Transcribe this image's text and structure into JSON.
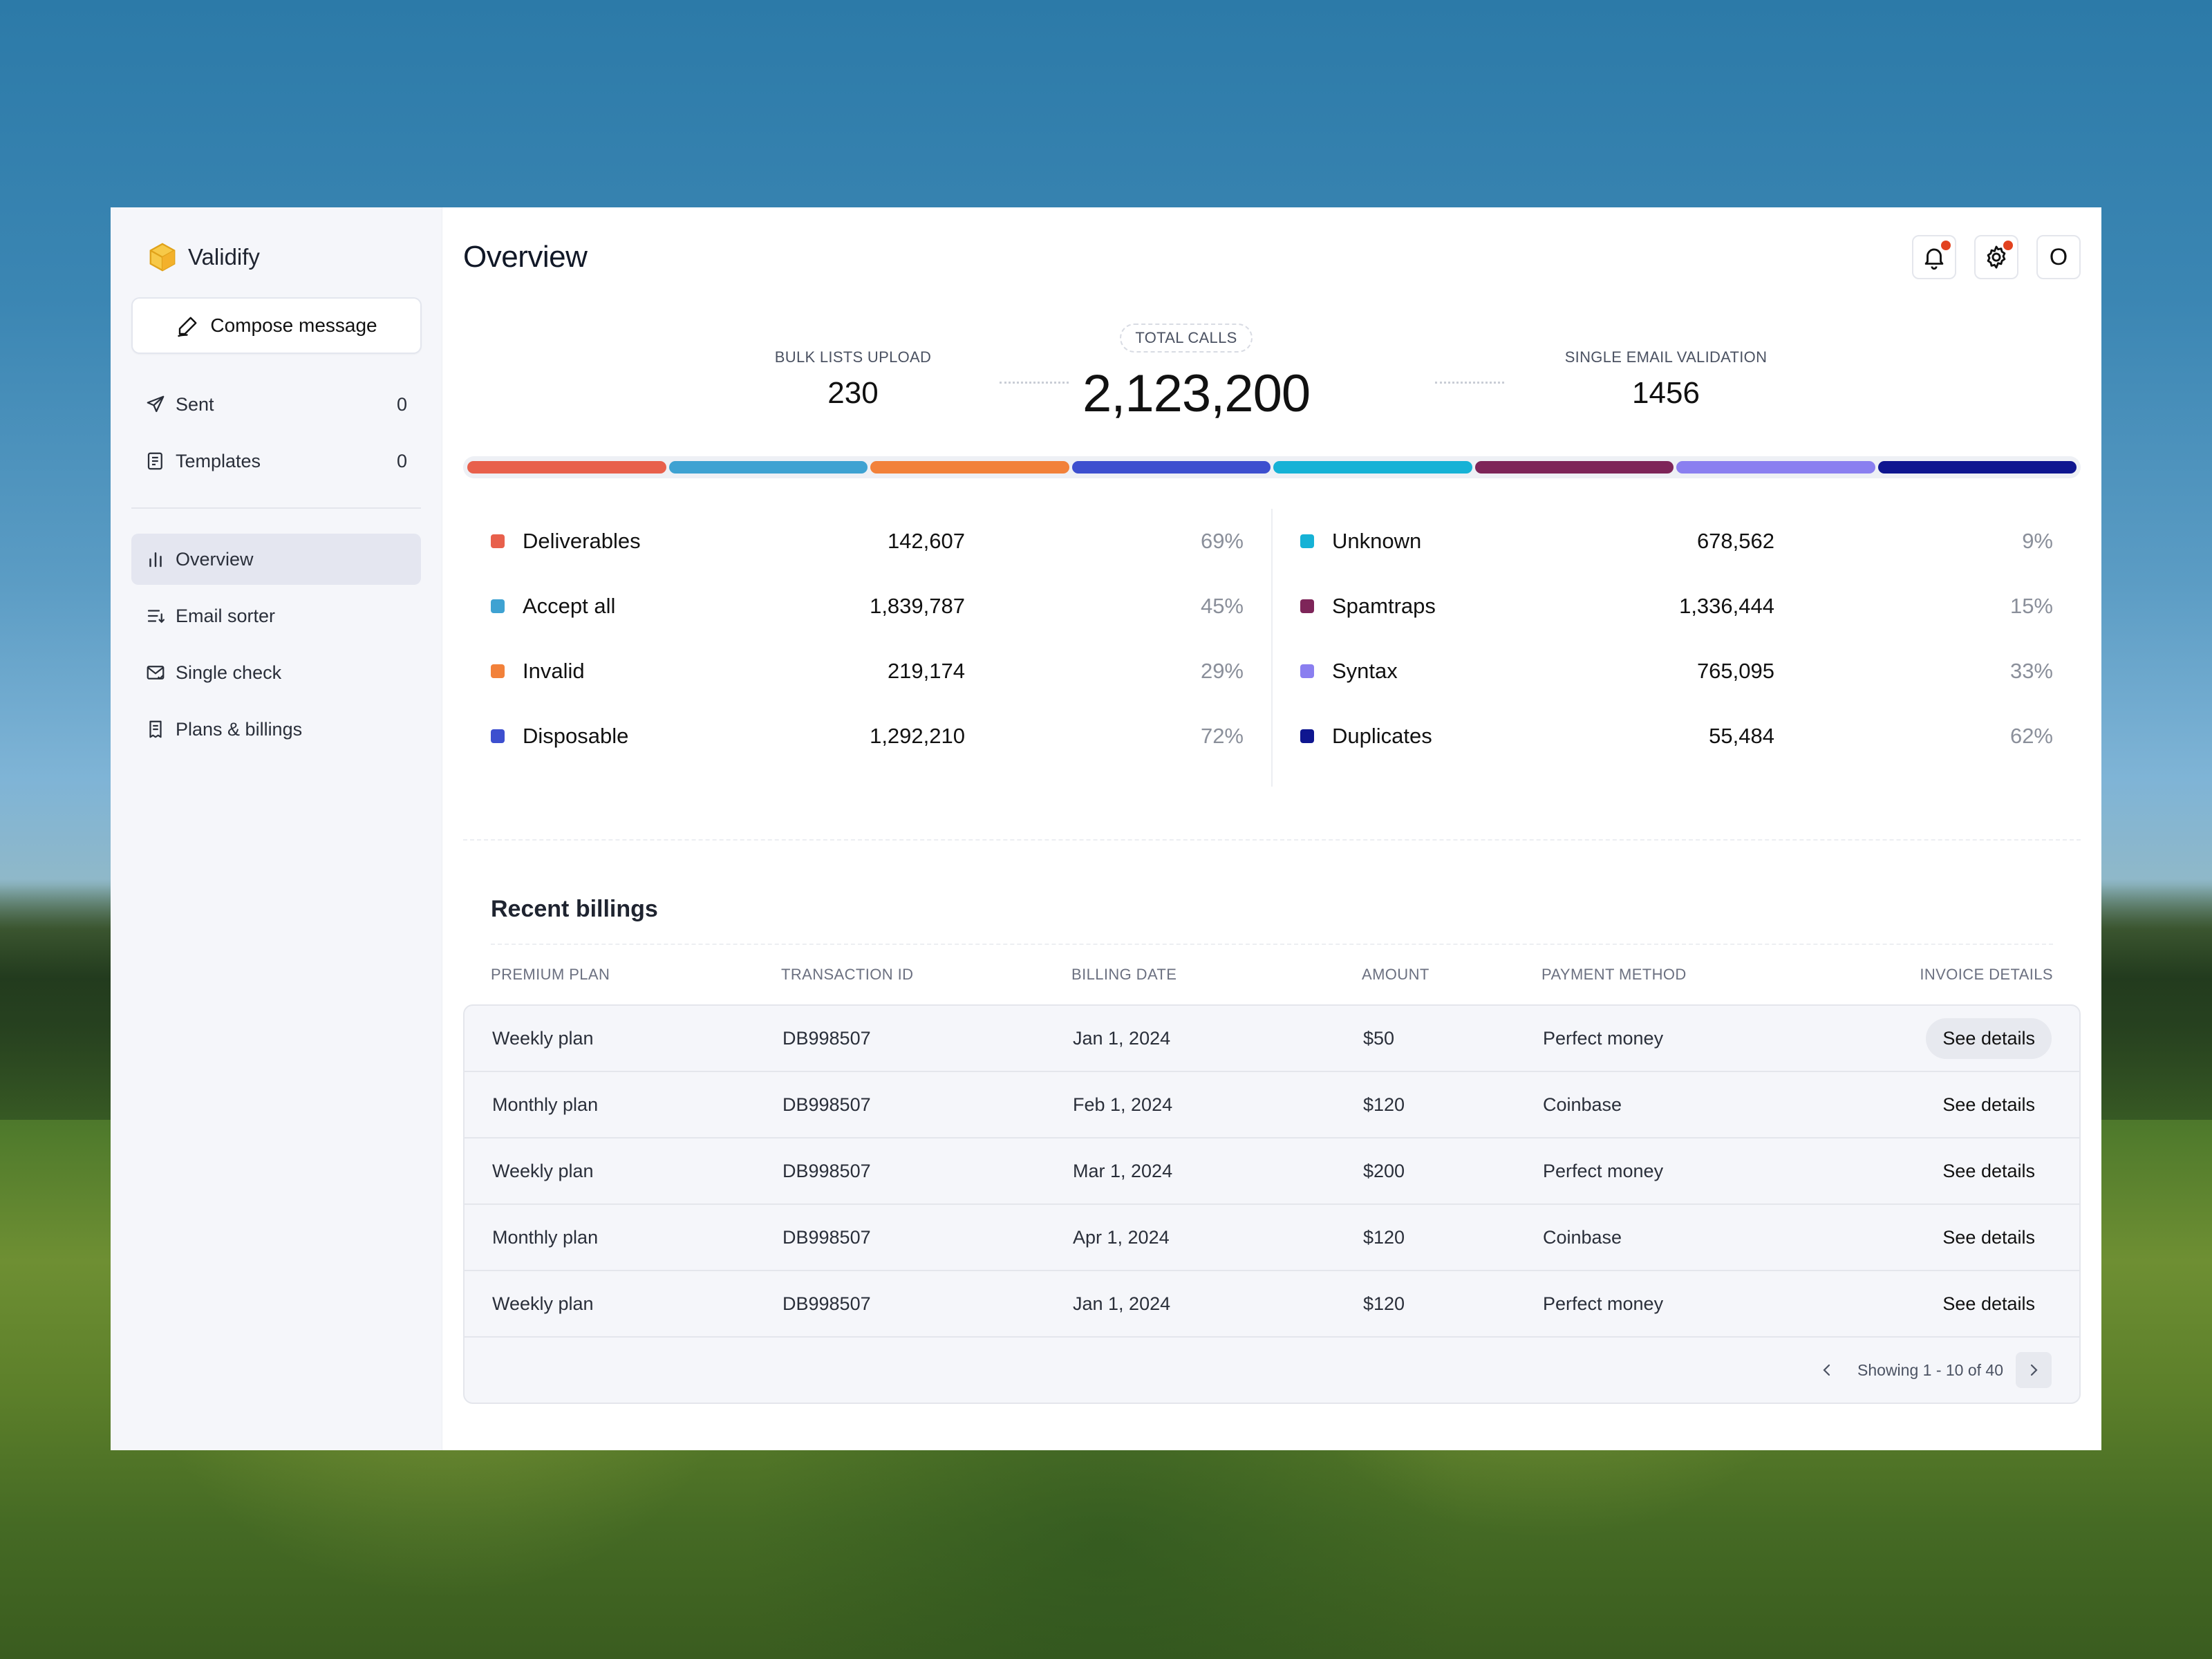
{
  "app": {
    "name": "Validify"
  },
  "sidebar": {
    "compose_label": "Compose message",
    "mail_items": [
      {
        "label": "Sent",
        "count": "0"
      },
      {
        "label": "Templates",
        "count": "0"
      }
    ],
    "nav_items": [
      {
        "label": "Overview",
        "active": true
      },
      {
        "label": "Email sorter"
      },
      {
        "label": "Single check"
      },
      {
        "label": "Plans & billings"
      }
    ]
  },
  "header": {
    "title": "Overview",
    "avatar_initial": "O"
  },
  "stats": {
    "bulk": {
      "label": "BULK LISTS UPLOAD",
      "value": "230"
    },
    "total": {
      "label": "TOTAL CALLS",
      "value": "2,123,200"
    },
    "single": {
      "label": "SINGLE EMAIL VALIDATION",
      "value": "1456"
    }
  },
  "segments": [
    {
      "name": "Deliverables",
      "count": "142,607",
      "percent": "69%",
      "color": "#e8604c"
    },
    {
      "name": "Accept all",
      "count": "1,839,787",
      "percent": "45%",
      "color": "#3ea2d2"
    },
    {
      "name": "Invalid",
      "count": "219,174",
      "percent": "29%",
      "color": "#f2813a"
    },
    {
      "name": "Disposable",
      "count": "1,292,210",
      "percent": "72%",
      "color": "#3d4fcf"
    },
    {
      "name": "Unknown",
      "count": "678,562",
      "percent": "9%",
      "color": "#16b2d6"
    },
    {
      "name": "Spamtraps",
      "count": "1,336,444",
      "percent": "15%",
      "color": "#7e2559"
    },
    {
      "name": "Syntax",
      "count": "765,095",
      "percent": "33%",
      "color": "#8a7ff0"
    },
    {
      "name": "Duplicates",
      "count": "55,484",
      "percent": "62%",
      "color": "#0f1690"
    }
  ],
  "billing": {
    "title": "Recent billings",
    "columns": [
      "PREMIUM PLAN",
      "TRANSACTION ID",
      "BILLING DATE",
      "AMOUNT",
      "PAYMENT METHOD",
      "INVOICE DETAILS"
    ],
    "rows": [
      {
        "plan": "Weekly plan",
        "txid": "DB998507",
        "date": "Jan 1, 2024",
        "amount": "$50",
        "method": "Perfect money",
        "action": "See details"
      },
      {
        "plan": "Monthly plan",
        "txid": "DB998507",
        "date": "Feb 1, 2024",
        "amount": "$120",
        "method": "Coinbase",
        "action": "See details"
      },
      {
        "plan": "Weekly plan",
        "txid": "DB998507",
        "date": "Mar 1, 2024",
        "amount": "$200",
        "method": "Perfect money",
        "action": "See details"
      },
      {
        "plan": "Monthly plan",
        "txid": "DB998507",
        "date": "Apr 1, 2024",
        "amount": "$120",
        "method": "Coinbase",
        "action": "See details"
      },
      {
        "plan": "Weekly plan",
        "txid": "DB998507",
        "date": "Jan 1, 2024",
        "amount": "$120",
        "method": "Perfect money",
        "action": "See details"
      }
    ],
    "pagination": "Showing 1 - 10 of 40"
  }
}
